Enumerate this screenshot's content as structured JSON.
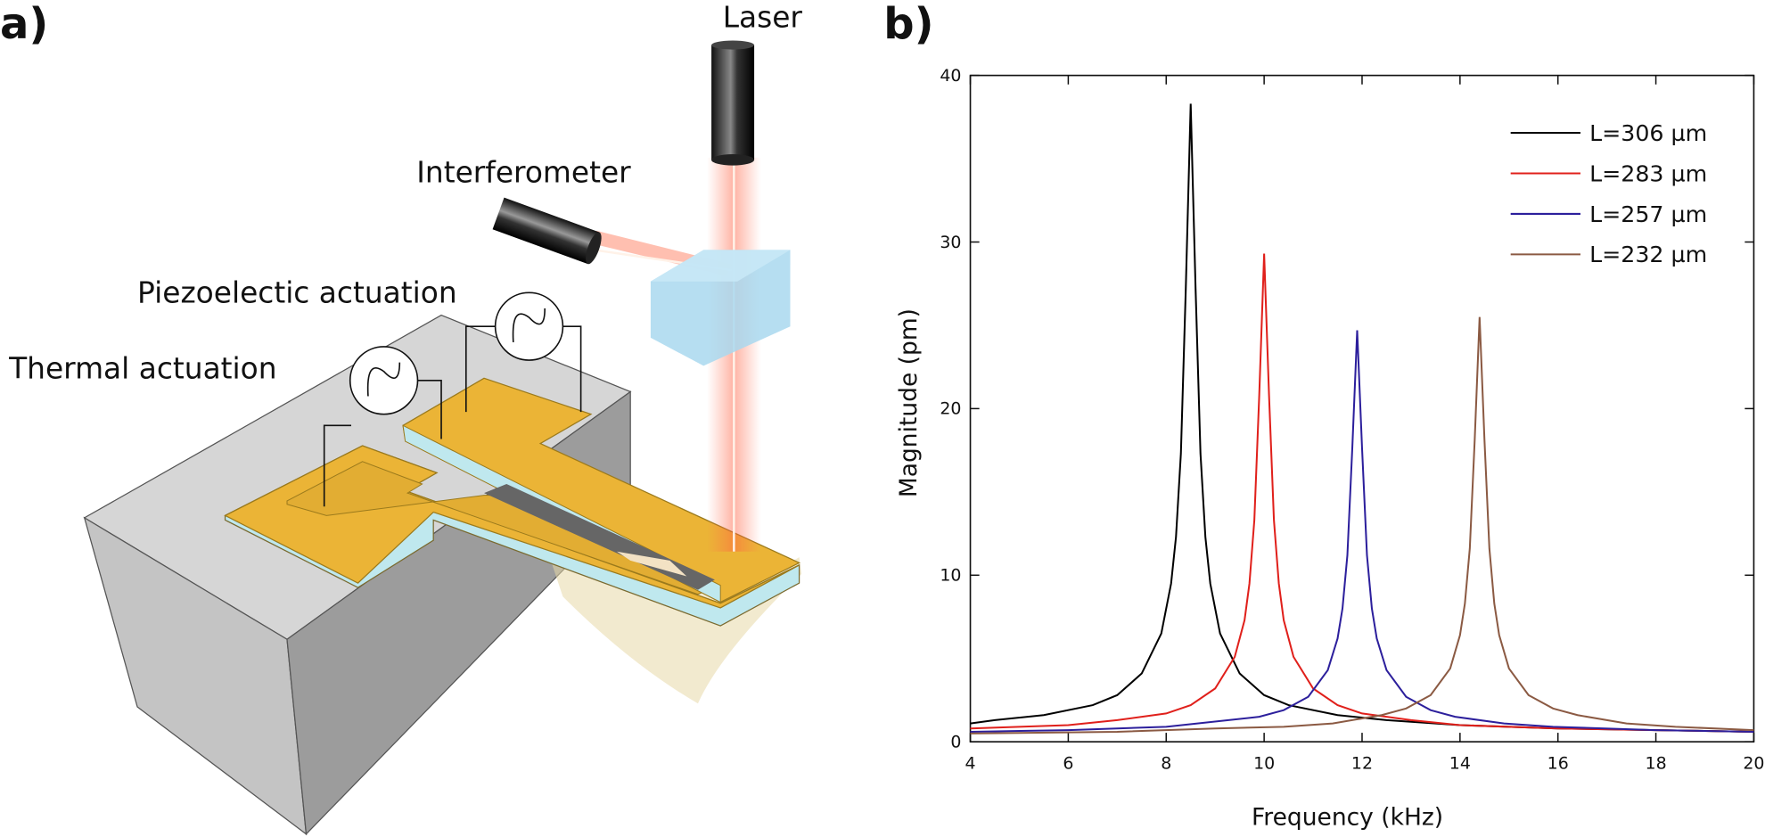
{
  "diagram": {
    "panel_label": "a)",
    "labels": [
      "Laser",
      "Interferometer",
      "Piezoelectic actuation",
      "Thermal actuation"
    ]
  },
  "chart_data": {
    "type": "line",
    "panel_label": "b)",
    "x_label": "Frequency (kHz)",
    "y_label": "Magnitude (pm)",
    "xlim": [
      4,
      20
    ],
    "ylim": [
      0,
      40
    ],
    "xticks": [
      4,
      6,
      8,
      10,
      12,
      14,
      16,
      18,
      20
    ],
    "yticks": [
      0,
      10,
      20,
      30,
      40
    ],
    "legend": "upper right",
    "series": [
      {
        "name": "L=306 µm",
        "color": "#000000",
        "x": [
          4,
          4.5,
          5.5,
          6.5,
          7,
          7.5,
          7.9,
          8.1,
          8.2,
          8.3,
          8.4,
          8.5,
          8.6,
          8.7,
          8.8,
          8.9,
          9.1,
          9.5,
          10,
          10.5,
          11.5,
          12.5,
          14,
          16,
          18,
          20
        ],
        "values": [
          1.1,
          1.3,
          1.6,
          2.2,
          2.8,
          4.1,
          6.5,
          9.5,
          12.3,
          17.3,
          27.2,
          38.3,
          27.2,
          17.3,
          12.3,
          9.5,
          6.5,
          4.1,
          2.8,
          2.2,
          1.6,
          1.3,
          1.0,
          0.8,
          0.7,
          0.6
        ]
      },
      {
        "name": "L=283 µm",
        "color": "#e0201b",
        "x": [
          4,
          5,
          6,
          7,
          8,
          8.5,
          9,
          9.4,
          9.6,
          9.7,
          9.8,
          9.9,
          10,
          10.1,
          10.2,
          10.3,
          10.4,
          10.6,
          11,
          11.5,
          12,
          13,
          14,
          16,
          18,
          20
        ],
        "values": [
          0.8,
          0.9,
          1.0,
          1.3,
          1.7,
          2.2,
          3.2,
          5.1,
          7.3,
          9.5,
          13.3,
          20.8,
          29.3,
          20.8,
          13.3,
          9.5,
          7.3,
          5.1,
          3.2,
          2.2,
          1.7,
          1.3,
          1.0,
          0.8,
          0.7,
          0.6
        ]
      },
      {
        "name": "L=257 µm",
        "color": "#2c1f9c",
        "x": [
          4,
          6,
          8,
          9.9,
          10.4,
          10.9,
          11.3,
          11.5,
          11.6,
          11.7,
          11.8,
          11.9,
          12,
          12.1,
          12.2,
          12.3,
          12.5,
          12.9,
          13.4,
          13.9,
          14.9,
          15.9,
          18,
          20
        ],
        "values": [
          0.6,
          0.7,
          0.9,
          1.5,
          1.9,
          2.7,
          4.3,
          6.2,
          8.0,
          11.2,
          17.6,
          24.7,
          17.6,
          11.2,
          8.0,
          6.2,
          4.3,
          2.7,
          1.9,
          1.5,
          1.1,
          0.9,
          0.7,
          0.6
        ]
      },
      {
        "name": "L=232 µm",
        "color": "#8b5a43",
        "x": [
          4,
          7,
          9,
          10.4,
          11.4,
          12.4,
          12.9,
          13.4,
          13.8,
          14.0,
          14.1,
          14.2,
          14.3,
          14.4,
          14.5,
          14.6,
          14.7,
          14.8,
          15.0,
          15.4,
          15.9,
          16.4,
          17.4,
          18.4,
          20
        ],
        "values": [
          0.5,
          0.6,
          0.8,
          0.9,
          1.1,
          1.6,
          2.0,
          2.8,
          4.4,
          6.4,
          8.3,
          11.6,
          18.1,
          25.5,
          18.1,
          11.6,
          8.3,
          6.4,
          4.4,
          2.8,
          2.0,
          1.6,
          1.1,
          0.9,
          0.7
        ]
      }
    ]
  }
}
